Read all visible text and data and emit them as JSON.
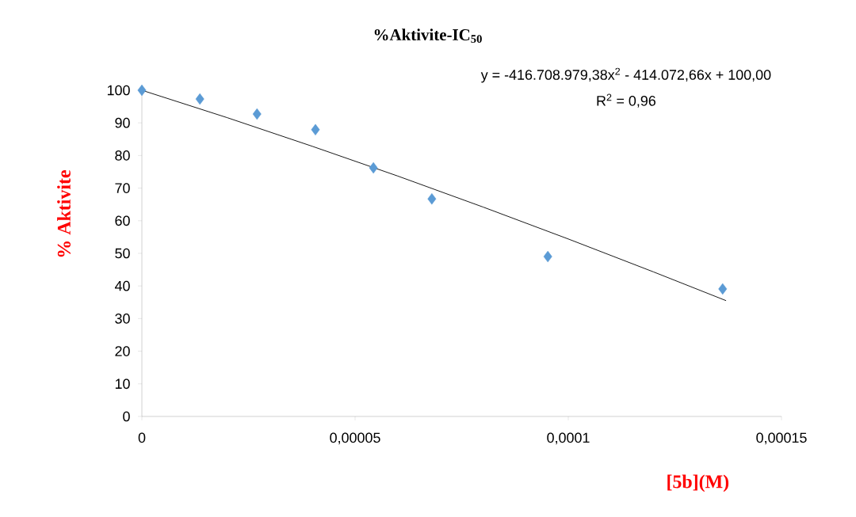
{
  "chart_data": {
    "type": "scatter",
    "title": "%Aktivite-IC$_{50}$",
    "xlabel": "[5b](M)",
    "ylabel": "% Aktivite",
    "annotations": [
      "y = -416.708.979,38x$^{2}$ - 414.072,66x + 100,00",
      "R$^{2}$ = 0,96"
    ],
    "series": [
      {
        "color": "#5b9bd5",
        "marker": "diamond",
        "x": [
          0,
          1.36e-05,
          2.7e-05,
          4.07e-05,
          5.43e-05,
          6.8e-05,
          9.52e-05,
          0.0001362
        ],
        "values": [
          100,
          97.3,
          92.7,
          87.9,
          76.2,
          66.7,
          49.0,
          39.1
        ]
      },
      {
        "type": "line",
        "color": "#000000",
        "marker": "none",
        "line_style": "solid",
        "x": [
          0,
          2e-05,
          4e-05,
          6e-05,
          8e-05,
          0.0001,
          0.00012,
          0.000137
        ],
        "values": [
          100,
          91.6,
          82.8,
          73.7,
          64.2,
          54.4,
          44.3,
          35.5
        ]
      }
    ],
    "xlim": [
      0,
      0.00015
    ],
    "ylim": [
      0,
      100
    ],
    "xticks": [
      0,
      {
        "value": 5e-05,
        "label": "0,00005"
      },
      {
        "value": 0.0001,
        "label": "0,0001"
      },
      {
        "value": 0.00015,
        "label": "0,00015"
      }
    ],
    "yticks": [
      0,
      10,
      20,
      30,
      40,
      50,
      60,
      70,
      80,
      90,
      100
    ],
    "grid": false
  }
}
